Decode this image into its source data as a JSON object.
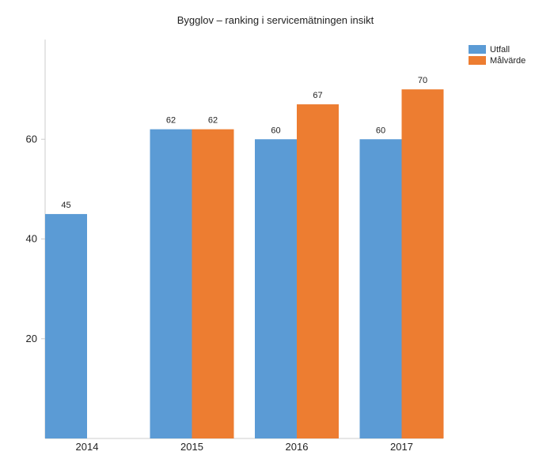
{
  "chart_data": {
    "type": "bar",
    "title": "Bygglov – ranking i servicemätningen insikt",
    "categories": [
      "2014",
      "2015",
      "2016",
      "2017"
    ],
    "series": [
      {
        "name": "Utfall",
        "color": "#5b9bd5",
        "values": [
          45,
          62,
          60,
          60
        ]
      },
      {
        "name": "Målvärde",
        "color": "#ed7d31",
        "values": [
          null,
          62,
          67,
          70
        ]
      }
    ],
    "y_ticks": [
      20,
      40,
      60
    ],
    "ylim": [
      0,
      80
    ],
    "grid": false,
    "legend_position": "top-right"
  }
}
